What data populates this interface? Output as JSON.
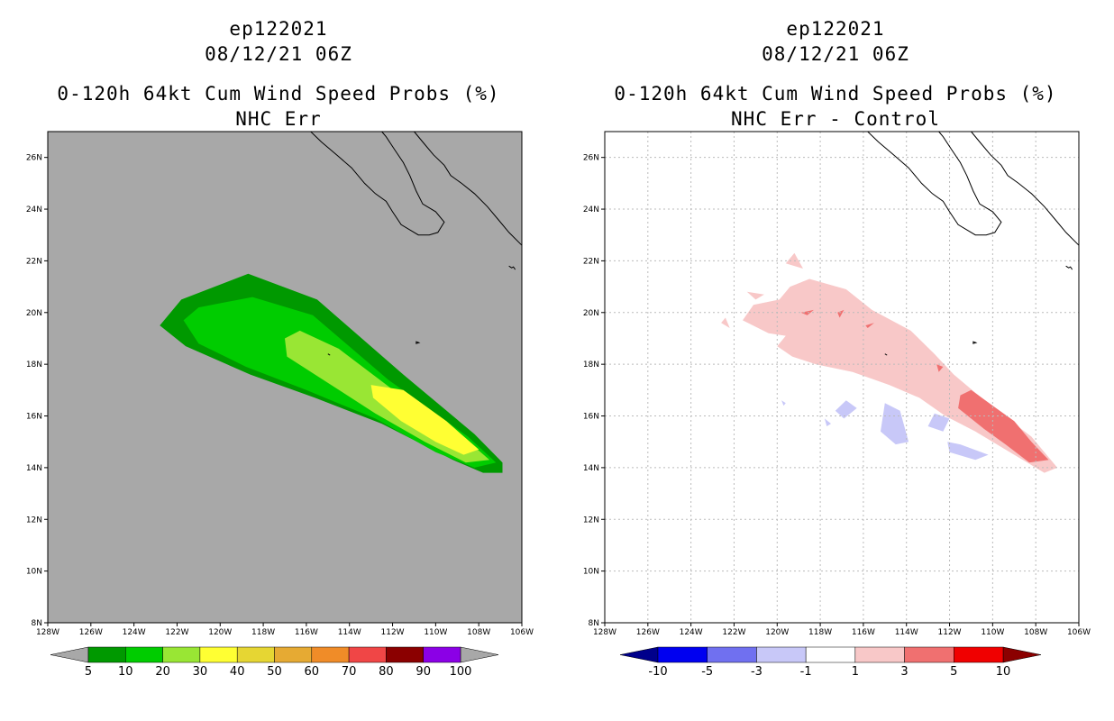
{
  "chart_data": [
    {
      "type": "heatmap",
      "title": [
        "ep122021",
        "08/12/21 06Z",
        "0-120h 64kt Cum Wind Speed Probs (%)",
        "NHC Err"
      ],
      "xlabel": "",
      "ylabel": "",
      "xlim": [
        -128,
        -106
      ],
      "ylim": [
        8,
        27
      ],
      "x_ticks": [
        "128W",
        "126W",
        "124W",
        "122W",
        "120W",
        "118W",
        "116W",
        "114W",
        "112W",
        "110W",
        "108W",
        "106W"
      ],
      "y_ticks": [
        "8N",
        "10N",
        "12N",
        "14N",
        "16N",
        "18N",
        "20N",
        "22N",
        "24N",
        "26N"
      ],
      "background_color": "#a8a8a8",
      "grid": false,
      "colorbar": {
        "labels": [
          "5",
          "10",
          "20",
          "30",
          "40",
          "50",
          "60",
          "70",
          "80",
          "90",
          "100"
        ],
        "colors": [
          "#009900",
          "#00cc00",
          "#99e634",
          "#ffff33",
          "#e6d633",
          "#e6aa33",
          "#f08c28",
          "#f04646",
          "#8b0000",
          "#8b00e6"
        ],
        "end_colors": [
          "#a8a8a8",
          "#a8a8a8"
        ]
      },
      "contours": [
        {
          "level": 5,
          "color": "#009900",
          "polygon": [
            [
              -122.8,
              19.5
            ],
            [
              -121.8,
              20.5
            ],
            [
              -118.7,
              21.5
            ],
            [
              -115.5,
              20.5
            ],
            [
              -111.5,
              17.6
            ],
            [
              -108.2,
              15.3
            ],
            [
              -106.9,
              14.2
            ],
            [
              -106.9,
              13.8
            ],
            [
              -107.8,
              13.8
            ],
            [
              -109.2,
              14.3
            ],
            [
              -112.5,
              15.7
            ],
            [
              -115.6,
              16.7
            ],
            [
              -118.6,
              17.6
            ],
            [
              -121.6,
              18.7
            ]
          ]
        },
        {
          "level": 10,
          "color": "#00cc00",
          "polygon": [
            [
              -121.7,
              19.7
            ],
            [
              -121.0,
              20.2
            ],
            [
              -118.5,
              20.6
            ],
            [
              -115.7,
              19.9
            ],
            [
              -112.2,
              17.4
            ],
            [
              -108.5,
              15.2
            ],
            [
              -107.2,
              14.2
            ],
            [
              -108.2,
              14.0
            ],
            [
              -110.0,
              14.6
            ],
            [
              -112.8,
              15.9
            ],
            [
              -116.0,
              17.0
            ],
            [
              -118.8,
              17.9
            ],
            [
              -121.0,
              18.8
            ]
          ]
        },
        {
          "level": 20,
          "color": "#99e634",
          "polygon": [
            [
              -117.0,
              19.0
            ],
            [
              -116.3,
              19.3
            ],
            [
              -114.5,
              18.6
            ],
            [
              -111.8,
              16.9
            ],
            [
              -108.6,
              15.1
            ],
            [
              -107.5,
              14.3
            ],
            [
              -108.6,
              14.2
            ],
            [
              -110.5,
              15.0
            ],
            [
              -112.8,
              16.1
            ],
            [
              -115.6,
              17.6
            ],
            [
              -116.9,
              18.3
            ]
          ]
        },
        {
          "level": 30,
          "color": "#ffff33",
          "polygon": [
            [
              -113.0,
              17.2
            ],
            [
              -111.5,
              17.0
            ],
            [
              -109.5,
              15.8
            ],
            [
              -108.0,
              14.7
            ],
            [
              -108.7,
              14.5
            ],
            [
              -110.0,
              15.0
            ],
            [
              -111.6,
              15.8
            ],
            [
              -112.9,
              16.7
            ]
          ]
        }
      ]
    },
    {
      "type": "heatmap",
      "title": [
        "ep122021",
        "08/12/21 06Z",
        "0-120h 64kt Cum Wind Speed Probs (%)",
        "NHC Err - Control"
      ],
      "xlabel": "",
      "ylabel": "",
      "xlim": [
        -128,
        -106
      ],
      "ylim": [
        8,
        27
      ],
      "x_ticks": [
        "128W",
        "126W",
        "124W",
        "122W",
        "120W",
        "118W",
        "116W",
        "114W",
        "112W",
        "110W",
        "108W",
        "106W"
      ],
      "y_ticks": [
        "8N",
        "10N",
        "12N",
        "14N",
        "16N",
        "18N",
        "20N",
        "22N",
        "24N",
        "26N"
      ],
      "background_color": "#ffffff",
      "grid": true,
      "colorbar": {
        "labels": [
          "-10",
          "-5",
          "-3",
          "-1",
          "1",
          "3",
          "5",
          "10"
        ],
        "colors": [
          "#0000f0",
          "#7070f0",
          "#c8c8f8",
          "#ffffff",
          "#f8c8c8",
          "#f07070",
          "#f00000"
        ],
        "end_colors": [
          "#00008b",
          "#8b0000"
        ]
      },
      "contours": [
        {
          "level": 1,
          "color": "#f8c8c8",
          "polygon": [
            [
              -119.9,
              20.5
            ],
            [
              -119.4,
              21.0
            ],
            [
              -118.5,
              21.3
            ],
            [
              -116.8,
              20.9
            ],
            [
              -115.6,
              20.1
            ],
            [
              -113.8,
              19.3
            ],
            [
              -112.7,
              18.4
            ],
            [
              -111.8,
              17.6
            ],
            [
              -110.8,
              16.9
            ],
            [
              -109.6,
              16.1
            ],
            [
              -108.2,
              15.2
            ],
            [
              -107.0,
              14.0
            ],
            [
              -107.6,
              13.8
            ],
            [
              -108.6,
              14.3
            ],
            [
              -109.8,
              14.9
            ],
            [
              -110.8,
              15.4
            ],
            [
              -112.2,
              16.0
            ],
            [
              -113.4,
              16.7
            ],
            [
              -114.8,
              17.2
            ],
            [
              -116.5,
              17.7
            ],
            [
              -118.2,
              18.0
            ],
            [
              -119.3,
              18.3
            ],
            [
              -120.0,
              18.7
            ],
            [
              -119.6,
              19.1
            ],
            [
              -120.4,
              19.2
            ],
            [
              -121.6,
              19.7
            ],
            [
              -121.1,
              20.3
            ]
          ]
        },
        {
          "level": 1,
          "color": "#f8c8c8",
          "polygon": [
            [
              -121.0,
              20.5
            ],
            [
              -120.6,
              20.7
            ],
            [
              -121.4,
              20.8
            ]
          ]
        },
        {
          "level": 1,
          "color": "#f8c8c8",
          "polygon": [
            [
              -119.6,
              21.9
            ],
            [
              -119.2,
              22.3
            ],
            [
              -118.8,
              21.7
            ]
          ]
        },
        {
          "level": 1,
          "color": "#f8c8c8",
          "polygon": [
            [
              -122.6,
              19.6
            ],
            [
              -122.2,
              19.4
            ],
            [
              -122.4,
              19.8
            ]
          ]
        },
        {
          "level": 3,
          "color": "#f07070",
          "polygon": [
            [
              -111.5,
              16.8
            ],
            [
              -111.0,
              17.0
            ],
            [
              -110.0,
              16.4
            ],
            [
              -109.0,
              15.8
            ],
            [
              -108.2,
              15.0
            ],
            [
              -107.4,
              14.3
            ],
            [
              -108.3,
              14.2
            ],
            [
              -109.4,
              14.9
            ],
            [
              -110.4,
              15.5
            ],
            [
              -111.6,
              16.3
            ]
          ]
        },
        {
          "level": 3,
          "color": "#f07070",
          "polygon": [
            [
              -118.9,
              20.0
            ],
            [
              -118.3,
              20.1
            ],
            [
              -118.6,
              19.9
            ]
          ]
        },
        {
          "level": 3,
          "color": "#f07070",
          "polygon": [
            [
              -117.2,
              20.0
            ],
            [
              -116.9,
              20.1
            ],
            [
              -117.1,
              19.8
            ]
          ]
        },
        {
          "level": 3,
          "color": "#f07070",
          "polygon": [
            [
              -115.9,
              19.5
            ],
            [
              -115.5,
              19.6
            ],
            [
              -115.8,
              19.4
            ]
          ]
        },
        {
          "level": 3,
          "color": "#f07070",
          "polygon": [
            [
              -112.6,
              18.0
            ],
            [
              -112.3,
              17.9
            ],
            [
              -112.5,
              17.7
            ]
          ]
        },
        {
          "level": -1,
          "color": "#c8c8f8",
          "polygon": [
            [
              -116.8,
              16.6
            ],
            [
              -117.3,
              16.2
            ],
            [
              -116.9,
              15.9
            ],
            [
              -116.3,
              16.3
            ]
          ]
        },
        {
          "level": -1,
          "color": "#c8c8f8",
          "polygon": [
            [
              -115.0,
              16.5
            ],
            [
              -114.3,
              16.2
            ],
            [
              -113.9,
              15.0
            ],
            [
              -114.5,
              14.9
            ],
            [
              -115.2,
              15.4
            ]
          ]
        },
        {
          "level": -1,
          "color": "#c8c8f8",
          "polygon": [
            [
              -112.7,
              16.1
            ],
            [
              -112.0,
              15.9
            ],
            [
              -112.3,
              15.4
            ],
            [
              -113.0,
              15.6
            ]
          ]
        },
        {
          "level": -1,
          "color": "#c8c8f8",
          "polygon": [
            [
              -112.1,
              15.0
            ],
            [
              -111.5,
              14.9
            ],
            [
              -110.2,
              14.5
            ],
            [
              -110.8,
              14.3
            ],
            [
              -112.0,
              14.6
            ]
          ]
        },
        {
          "level": -1,
          "color": "#c8c8f8",
          "polygon": [
            [
              -117.8,
              15.9
            ],
            [
              -117.5,
              15.7
            ],
            [
              -117.7,
              15.6
            ]
          ]
        },
        {
          "level": -1,
          "color": "#c8c8f8",
          "polygon": [
            [
              -119.8,
              16.6
            ],
            [
              -119.6,
              16.5
            ],
            [
              -119.7,
              16.4
            ]
          ]
        }
      ]
    }
  ]
}
